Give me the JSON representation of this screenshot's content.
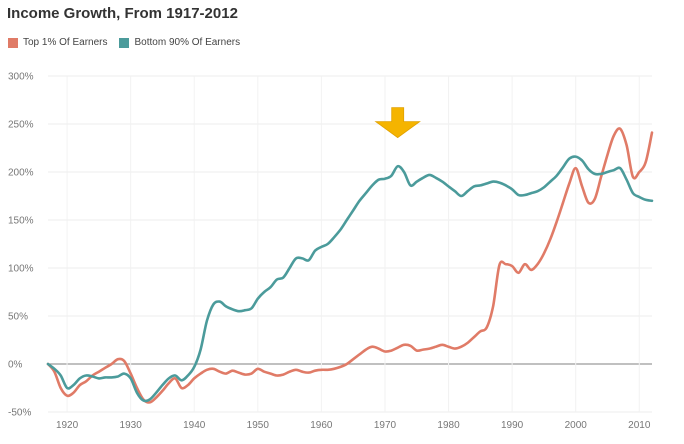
{
  "chart_data": {
    "type": "line",
    "title": "Income Growth, From 1917-2012",
    "xlabel": "",
    "ylabel": "",
    "xlim": [
      1917,
      2012
    ],
    "ylim": [
      -50,
      300
    ],
    "x_ticks": [
      1920,
      1930,
      1940,
      1950,
      1960,
      1970,
      1980,
      1990,
      2000,
      2010
    ],
    "x_tick_labels": [
      "1920",
      "1930",
      "1940",
      "1950",
      "1960",
      "1970",
      "1980",
      "1990",
      "2000",
      "2010"
    ],
    "y_ticks": [
      -50,
      0,
      50,
      100,
      150,
      200,
      250,
      300
    ],
    "y_tick_labels": [
      "-50%",
      "0%",
      "50%",
      "100%",
      "150%",
      "200%",
      "250%",
      "300%"
    ],
    "grid": true,
    "legend_position": "top-left",
    "annotation": {
      "type": "arrow",
      "year": 1972,
      "color": "#f5b400"
    },
    "series": [
      {
        "name": "Top 1% Of Earners",
        "color": "#e07b67",
        "points": [
          [
            1917,
            0
          ],
          [
            1918,
            -8
          ],
          [
            1919,
            -25
          ],
          [
            1920,
            -33
          ],
          [
            1921,
            -30
          ],
          [
            1922,
            -22
          ],
          [
            1923,
            -18
          ],
          [
            1924,
            -12
          ],
          [
            1925,
            -8
          ],
          [
            1926,
            -4
          ],
          [
            1927,
            0
          ],
          [
            1928,
            5
          ],
          [
            1929,
            3
          ],
          [
            1930,
            -10
          ],
          [
            1931,
            -25
          ],
          [
            1932,
            -37
          ],
          [
            1933,
            -40
          ],
          [
            1934,
            -35
          ],
          [
            1935,
            -28
          ],
          [
            1936,
            -20
          ],
          [
            1937,
            -15
          ],
          [
            1938,
            -25
          ],
          [
            1939,
            -22
          ],
          [
            1940,
            -15
          ],
          [
            1941,
            -10
          ],
          [
            1942,
            -6
          ],
          [
            1943,
            -5
          ],
          [
            1944,
            -8
          ],
          [
            1945,
            -10
          ],
          [
            1946,
            -7
          ],
          [
            1947,
            -9
          ],
          [
            1948,
            -11
          ],
          [
            1949,
            -10
          ],
          [
            1950,
            -5
          ],
          [
            1951,
            -8
          ],
          [
            1952,
            -10
          ],
          [
            1953,
            -12
          ],
          [
            1954,
            -11
          ],
          [
            1955,
            -8
          ],
          [
            1956,
            -6
          ],
          [
            1957,
            -8
          ],
          [
            1958,
            -9
          ],
          [
            1959,
            -7
          ],
          [
            1960,
            -6
          ],
          [
            1961,
            -6
          ],
          [
            1962,
            -5
          ],
          [
            1963,
            -3
          ],
          [
            1964,
            0
          ],
          [
            1965,
            5
          ],
          [
            1966,
            10
          ],
          [
            1967,
            15
          ],
          [
            1968,
            18
          ],
          [
            1969,
            16
          ],
          [
            1970,
            13
          ],
          [
            1971,
            14
          ],
          [
            1972,
            17
          ],
          [
            1973,
            20
          ],
          [
            1974,
            19
          ],
          [
            1975,
            14
          ],
          [
            1976,
            15
          ],
          [
            1977,
            16
          ],
          [
            1978,
            18
          ],
          [
            1979,
            20
          ],
          [
            1980,
            18
          ],
          [
            1981,
            16
          ],
          [
            1982,
            18
          ],
          [
            1983,
            22
          ],
          [
            1984,
            28
          ],
          [
            1985,
            34
          ],
          [
            1986,
            38
          ],
          [
            1987,
            60
          ],
          [
            1988,
            103
          ],
          [
            1989,
            104
          ],
          [
            1990,
            102
          ],
          [
            1991,
            95
          ],
          [
            1992,
            104
          ],
          [
            1993,
            98
          ],
          [
            1994,
            104
          ],
          [
            1995,
            115
          ],
          [
            1996,
            130
          ],
          [
            1997,
            148
          ],
          [
            1998,
            168
          ],
          [
            1999,
            188
          ],
          [
            2000,
            204
          ],
          [
            2001,
            185
          ],
          [
            2002,
            168
          ],
          [
            2003,
            172
          ],
          [
            2004,
            195
          ],
          [
            2005,
            218
          ],
          [
            2006,
            238
          ],
          [
            2007,
            245
          ],
          [
            2008,
            228
          ],
          [
            2009,
            195
          ],
          [
            2010,
            200
          ],
          [
            2011,
            210
          ],
          [
            2012,
            241
          ]
        ]
      },
      {
        "name": "Bottom 90% Of Earners",
        "color": "#4b9b9b",
        "points": [
          [
            1917,
            0
          ],
          [
            1918,
            -5
          ],
          [
            1919,
            -12
          ],
          [
            1920,
            -25
          ],
          [
            1921,
            -22
          ],
          [
            1922,
            -15
          ],
          [
            1923,
            -12
          ],
          [
            1924,
            -13
          ],
          [
            1925,
            -15
          ],
          [
            1926,
            -14
          ],
          [
            1927,
            -14
          ],
          [
            1928,
            -13
          ],
          [
            1929,
            -10
          ],
          [
            1930,
            -15
          ],
          [
            1931,
            -30
          ],
          [
            1932,
            -38
          ],
          [
            1933,
            -37
          ],
          [
            1934,
            -30
          ],
          [
            1935,
            -22
          ],
          [
            1936,
            -15
          ],
          [
            1937,
            -12
          ],
          [
            1938,
            -17
          ],
          [
            1939,
            -12
          ],
          [
            1940,
            -3
          ],
          [
            1941,
            15
          ],
          [
            1942,
            45
          ],
          [
            1943,
            62
          ],
          [
            1944,
            65
          ],
          [
            1945,
            60
          ],
          [
            1946,
            57
          ],
          [
            1947,
            55
          ],
          [
            1948,
            56
          ],
          [
            1949,
            58
          ],
          [
            1950,
            68
          ],
          [
            1951,
            75
          ],
          [
            1952,
            80
          ],
          [
            1953,
            88
          ],
          [
            1954,
            90
          ],
          [
            1955,
            100
          ],
          [
            1956,
            110
          ],
          [
            1957,
            110
          ],
          [
            1958,
            108
          ],
          [
            1959,
            118
          ],
          [
            1960,
            122
          ],
          [
            1961,
            125
          ],
          [
            1962,
            132
          ],
          [
            1963,
            140
          ],
          [
            1964,
            150
          ],
          [
            1965,
            160
          ],
          [
            1966,
            170
          ],
          [
            1967,
            178
          ],
          [
            1968,
            186
          ],
          [
            1969,
            192
          ],
          [
            1970,
            193
          ],
          [
            1971,
            196
          ],
          [
            1972,
            206
          ],
          [
            1973,
            200
          ],
          [
            1974,
            186
          ],
          [
            1975,
            190
          ],
          [
            1976,
            194
          ],
          [
            1977,
            197
          ],
          [
            1978,
            194
          ],
          [
            1979,
            190
          ],
          [
            1980,
            185
          ],
          [
            1981,
            180
          ],
          [
            1982,
            175
          ],
          [
            1983,
            180
          ],
          [
            1984,
            185
          ],
          [
            1985,
            186
          ],
          [
            1986,
            188
          ],
          [
            1987,
            190
          ],
          [
            1988,
            189
          ],
          [
            1989,
            186
          ],
          [
            1990,
            182
          ],
          [
            1991,
            176
          ],
          [
            1992,
            176
          ],
          [
            1993,
            178
          ],
          [
            1994,
            180
          ],
          [
            1995,
            184
          ],
          [
            1996,
            190
          ],
          [
            1997,
            196
          ],
          [
            1998,
            205
          ],
          [
            1999,
            214
          ],
          [
            2000,
            216
          ],
          [
            2001,
            212
          ],
          [
            2002,
            203
          ],
          [
            2003,
            198
          ],
          [
            2004,
            198
          ],
          [
            2005,
            200
          ],
          [
            2006,
            202
          ],
          [
            2007,
            204
          ],
          [
            2008,
            192
          ],
          [
            2009,
            178
          ],
          [
            2010,
            174
          ],
          [
            2011,
            171
          ],
          [
            2012,
            170
          ]
        ]
      }
    ]
  }
}
